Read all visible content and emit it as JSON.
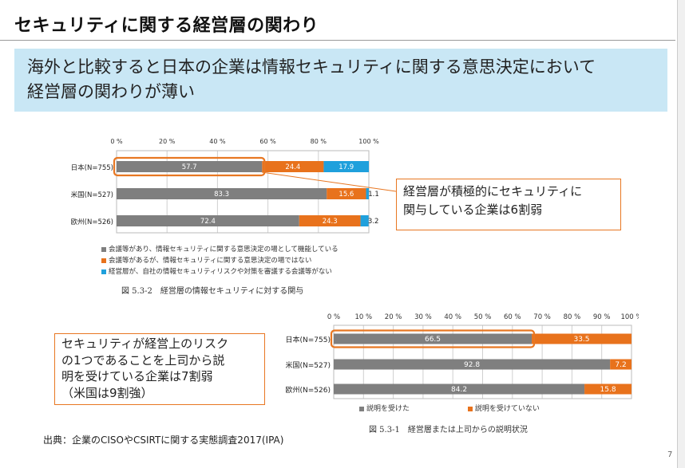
{
  "title": "セキュリティに関する経営層の関わり",
  "subtitle": {
    "line1": "海外と比較すると日本の企業は情報セキュリティに関する意思決定において",
    "line2": "経営層の関わりが薄い"
  },
  "colors": {
    "gray": "#7f7f7f",
    "orange": "#e8721c",
    "blue": "#1fa0dc",
    "subtitle_bg": "#c9e7f5",
    "highlight": "#e87722"
  },
  "chart_data": [
    {
      "type": "bar",
      "orientation": "horizontal-stacked",
      "caption": "図 5.3-2　経営層の情報セキュリティに対する関与",
      "xticks": [
        "0 %",
        "20 %",
        "40 %",
        "60 %",
        "80 %",
        "100 %"
      ],
      "categories": [
        "日本(N=755)",
        "米国(N=527)",
        "欧州(N=526)"
      ],
      "series": [
        {
          "name": "会議等があり、情報セキュリティに関する意思決定の場として機能している",
          "values": [
            57.7,
            83.3,
            72.4
          ],
          "labels": [
            "57.7",
            "83.3",
            "72.4"
          ],
          "color": "gray"
        },
        {
          "name": "会議等があるが、情報セキュリティに関する意思決定の場ではない",
          "values": [
            24.4,
            15.6,
            24.3
          ],
          "labels": [
            "24.4",
            "15.6",
            "24.3"
          ],
          "color": "orange"
        },
        {
          "name": "経営層が、自社の情報セキュリティリスクや対策を審議する会議等がない",
          "values": [
            17.9,
            1.1,
            3.2
          ],
          "labels": [
            "17.9",
            "1.1",
            "3.2"
          ],
          "color": "blue"
        }
      ],
      "xlim": [
        0,
        100
      ]
    },
    {
      "type": "bar",
      "orientation": "horizontal-stacked",
      "caption": "図 5.3-1　経営層または上司からの説明状況",
      "xticks": [
        "0 %",
        "10 %",
        "20 %",
        "30 %",
        "40 %",
        "50 %",
        "60 %",
        "70 %",
        "80 %",
        "90 %",
        "100 %"
      ],
      "categories": [
        "日本(N=755)",
        "米国(N=527)",
        "欧州(N=526)"
      ],
      "series": [
        {
          "name": "説明を受けた",
          "values": [
            66.5,
            92.8,
            84.2
          ],
          "labels": [
            "66.5",
            "92.8",
            "84.2"
          ],
          "color": "gray"
        },
        {
          "name": "説明を受けていない",
          "values": [
            33.5,
            7.2,
            15.8
          ],
          "labels": [
            "33.5",
            "7.2",
            "15.8"
          ],
          "color": "orange"
        }
      ],
      "xlim": [
        0,
        100
      ]
    }
  ],
  "callout1": {
    "line1": "経営層が積極的にセキュリティに",
    "line2": "関与している企業は6割弱"
  },
  "callout2": {
    "line1": "セキュリティが経営上のリスク",
    "line2": "の1つであることを上司から説",
    "line3": "明を受けている企業は7割弱",
    "line4": "（米国は9割強）"
  },
  "source": "出典：企業のCISOやCSIRTに関する実態調査2017(IPA)",
  "page_number": "7"
}
